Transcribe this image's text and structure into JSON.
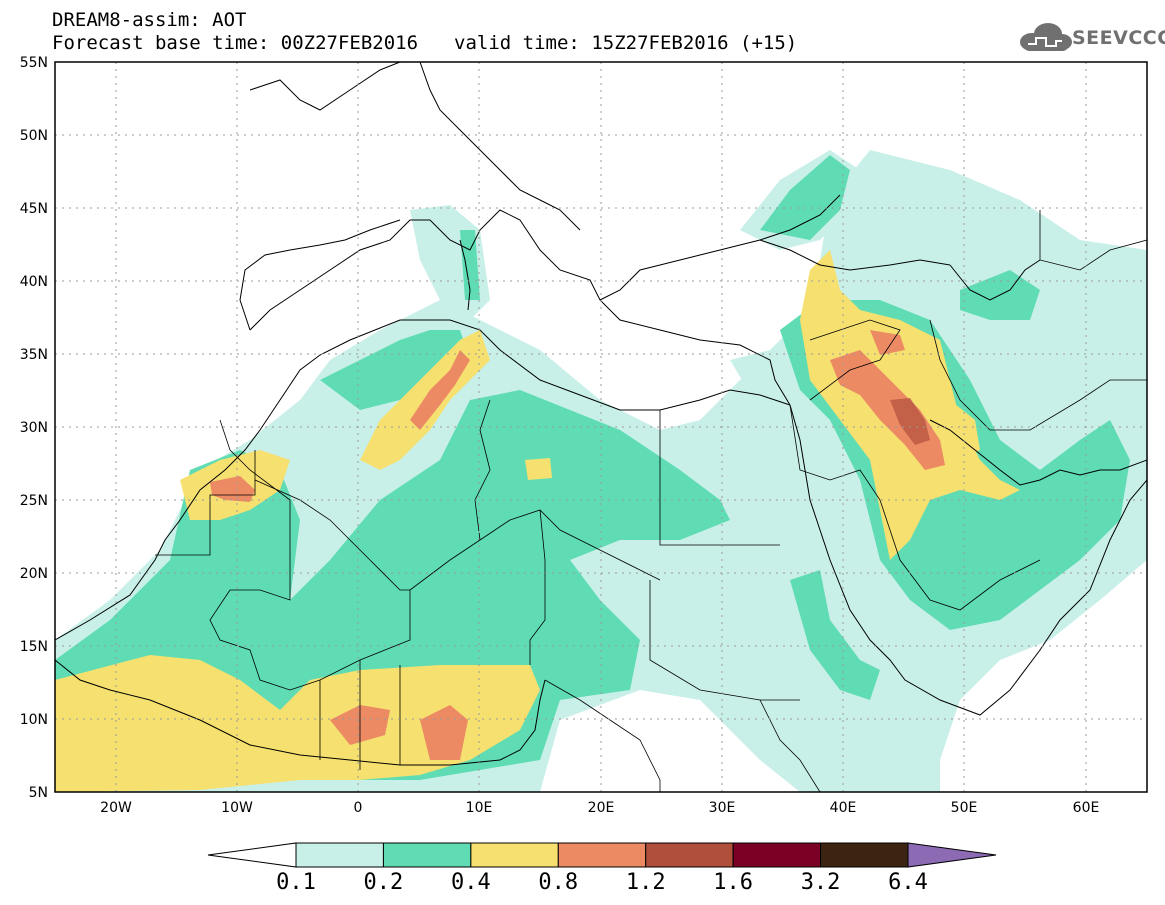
{
  "header": {
    "line1": "DREAM8-assim: AOT",
    "base_time": "Forecast base time: 00Z27FEB2016",
    "valid_time": "valid time: 15Z27FEB2016 (+15)"
  },
  "logo": {
    "text": "SEEVCCC",
    "icon": "cloud-icon"
  },
  "map": {
    "projection": "lat-lon",
    "lon_range": [
      -25,
      65
    ],
    "lat_range": [
      5,
      55
    ],
    "lat_ticks": [
      "55N",
      "50N",
      "45N",
      "40N",
      "35N",
      "30N",
      "25N",
      "20N",
      "15N",
      "10N",
      "5N"
    ],
    "lon_ticks": [
      "20W",
      "10W",
      "0",
      "10E",
      "20E",
      "30E",
      "40E",
      "50E",
      "60E"
    ],
    "gridlines": "dotted"
  },
  "colorbar": {
    "labels": [
      "0.1",
      "0.2",
      "0.4",
      "0.8",
      "1.2",
      "1.6",
      "3.2",
      "6.4"
    ],
    "colors": [
      "#ffffff",
      "#c9f0e8",
      "#5fdcb4",
      "#f5e070",
      "#ec8a64",
      "#b0503c",
      "#7a0026",
      "#3c2412",
      "#8c6ab4"
    ]
  }
}
